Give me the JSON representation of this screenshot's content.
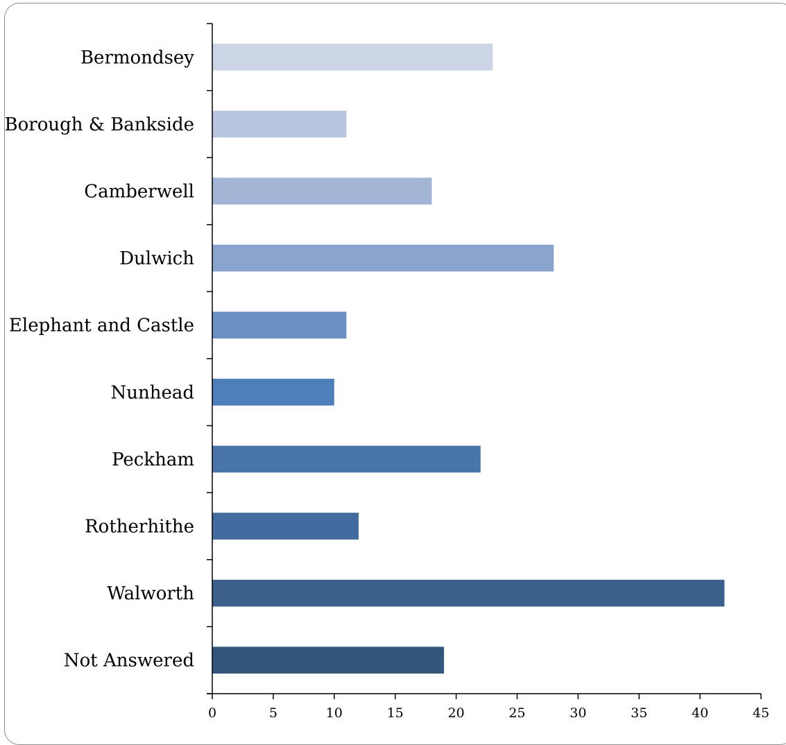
{
  "chart_data": {
    "type": "bar",
    "orientation": "horizontal",
    "title": "",
    "xlabel": "",
    "ylabel": "",
    "categories": [
      "Bermondsey",
      "Borough & Bankside",
      "Camberwell",
      "Dulwich",
      "Elephant and Castle",
      "Nunhead",
      "Peckham",
      "Rotherhithe",
      "Walworth",
      "Not Answered"
    ],
    "values": [
      23,
      11,
      18,
      28,
      11,
      10,
      22,
      12,
      42,
      19
    ],
    "bar_colors": [
      "#ccd5e6",
      "#b8c5de",
      "#a3b5d5",
      "#8aa4cd",
      "#6a90c2",
      "#4e7fba",
      "#4874aa",
      "#436b9f",
      "#3c608c",
      "#34567d"
    ],
    "xlim": [
      0,
      45
    ],
    "xticks": [
      0,
      5,
      10,
      15,
      20,
      25,
      30,
      35,
      40,
      45
    ],
    "grid": false,
    "legend": "none"
  }
}
